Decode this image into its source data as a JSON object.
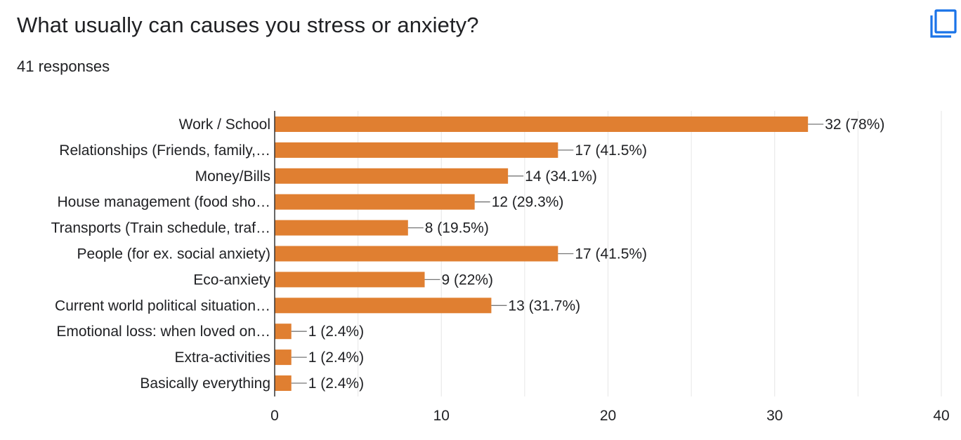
{
  "question": {
    "title": "What usually can causes you stress or anxiety?",
    "response_count": "41 responses"
  },
  "toolbar": {
    "copy_icon": "copy-icon"
  },
  "colors": {
    "bar": "#e07f31",
    "grid": "#e6e6e6",
    "axis": "#333333",
    "text": "#202124"
  },
  "chart_data": {
    "type": "bar",
    "orientation": "horizontal",
    "categories": [
      "Work / School",
      "Relationships (Friends, family,…",
      "Money/Bills",
      "House management (food sho…",
      "Transports (Train schedule, traf…",
      "People (for ex. social anxiety)",
      "Eco-anxiety",
      "Current world political situation…",
      "Emotional loss: when loved on…",
      "Extra-activities",
      "Basically everything"
    ],
    "values": [
      32,
      17,
      14,
      12,
      8,
      17,
      9,
      13,
      1,
      1,
      1
    ],
    "data_labels": [
      "32 (78%)",
      "17 (41.5%)",
      "14 (34.1%)",
      "12 (29.3%)",
      "8 (19.5%)",
      "17 (41.5%)",
      "9 (22%)",
      "13 (31.7%)",
      "1 (2.4%)",
      "1 (2.4%)",
      "1 (2.4%)"
    ],
    "xlim": [
      0,
      40
    ],
    "x_ticks": [
      0,
      10,
      20,
      30,
      40
    ],
    "x_tick_labels": [
      "0",
      "10",
      "20",
      "30",
      "40"
    ],
    "grid": true
  }
}
